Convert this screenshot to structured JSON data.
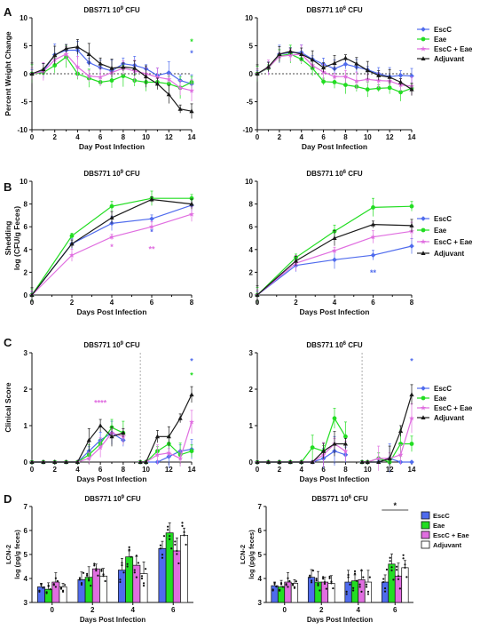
{
  "colors": {
    "escc": "#4f6bed",
    "eae": "#22dd22",
    "escc_eae": "#e06ee0",
    "adjuvant": "#1a1a1a"
  },
  "chart_data": [
    {
      "panel": "A",
      "type": "line",
      "title_main": "DBS771 10",
      "title_exp": "9",
      "title_unit": " CFU",
      "xlabel": "Day Post Infection",
      "ylabel": "Percent Weight Change",
      "xlim": [
        0,
        14
      ],
      "ylim": [
        -10,
        10
      ],
      "xticks": [
        "0",
        "2",
        "4",
        "6",
        "8",
        "10",
        "12",
        "14"
      ],
      "yticks": [
        "10",
        "5",
        "0",
        "-5",
        "-10"
      ],
      "x": [
        0,
        1,
        2,
        3,
        4,
        5,
        6,
        7,
        8,
        9,
        10,
        11,
        12,
        13,
        14
      ],
      "series": [
        {
          "name": "EscC",
          "values": [
            0,
            0.5,
            3.4,
            4.2,
            4.2,
            2,
            1.1,
            0.5,
            1.8,
            1.5,
            0.9,
            -0.3,
            0.2,
            -1.2,
            -1.8
          ]
        },
        {
          "name": "Eae",
          "values": [
            0,
            0.2,
            1.5,
            3,
            0,
            -0.8,
            -1.5,
            -1.2,
            -0.4,
            -1.2,
            -1.5,
            -1.5,
            -1.8,
            -2.5,
            -1.5
          ]
        },
        {
          "name": "EscC + Eae",
          "values": [
            0,
            0.4,
            2.5,
            3.5,
            1.2,
            -0.4,
            -0.6,
            0.2,
            1,
            0.5,
            0,
            -0.6,
            -1,
            -2.5,
            -3
          ]
        },
        {
          "name": "Adjuvant",
          "values": [
            0,
            0.8,
            3.3,
            4.5,
            4.8,
            3.5,
            1.8,
            1,
            1.2,
            1,
            -0.5,
            -1.8,
            -3.7,
            -6.3,
            -6.7
          ]
        }
      ],
      "annotations": [
        "*",
        "*"
      ]
    },
    {
      "panel": "A",
      "type": "line",
      "title_main": "DBS771 10",
      "title_exp": "6",
      "title_unit": " CFU",
      "xlabel": "Day Post Infection",
      "ylabel": "",
      "xlim": [
        0,
        14
      ],
      "ylim": [
        -10,
        10
      ],
      "xticks": [
        "0",
        "2",
        "4",
        "6",
        "8",
        "10",
        "12",
        "14"
      ],
      "yticks": [
        "10",
        "5",
        "0",
        "-5",
        "-10"
      ],
      "x": [
        0,
        1,
        2,
        3,
        4,
        5,
        6,
        7,
        8,
        9,
        10,
        11,
        12,
        13,
        14
      ],
      "series": [
        {
          "name": "EscC",
          "values": [
            0,
            1,
            3.5,
            3.8,
            3.8,
            2.6,
            1.7,
            0.9,
            1.7,
            1.2,
            0.7,
            0,
            -0.5,
            -0.3,
            -0.4
          ]
        },
        {
          "name": "Eae",
          "values": [
            0,
            1,
            3.2,
            3.5,
            2.6,
            1,
            -1.4,
            -1.5,
            -2,
            -2.3,
            -2.8,
            -2.6,
            -2.5,
            -3.3,
            -2.6
          ]
        },
        {
          "name": "EscC + Eae",
          "values": [
            0,
            1.1,
            3.1,
            3.3,
            3.5,
            1.5,
            0.3,
            -0.5,
            -0.5,
            -1.3,
            -1,
            -1.2,
            -1.3,
            -2,
            -2.2
          ]
        },
        {
          "name": "Adjuvant",
          "values": [
            0,
            1.2,
            3.5,
            4,
            3.5,
            2.5,
            1.1,
            1.9,
            2.8,
            1.8,
            0.6,
            -0.3,
            -0.6,
            -1.5,
            -2.8
          ]
        }
      ],
      "annotations": []
    },
    {
      "panel": "B",
      "type": "line",
      "title_main": "DBS771 10",
      "title_exp": "9",
      "title_unit": " CFU",
      "xlabel": "Days Post Infection",
      "ylabel": "Shedding",
      "ylabel2": "log (CFU/g Feces)",
      "xlim": [
        0,
        8
      ],
      "ylim": [
        0,
        10
      ],
      "xticks": [
        "0",
        "2",
        "4",
        "6",
        "8"
      ],
      "yticks": [
        "10",
        "8",
        "6",
        "4",
        "2",
        "0"
      ],
      "x": [
        0,
        2,
        4,
        6,
        8
      ],
      "series": [
        {
          "name": "EscC",
          "values": [
            0,
            4.5,
            6.3,
            6.7,
            7.9
          ]
        },
        {
          "name": "Eae",
          "values": [
            0,
            5.2,
            7.8,
            8.5,
            8.5
          ]
        },
        {
          "name": "EscC + Eae",
          "values": [
            0,
            3.5,
            5.1,
            6,
            7.1
          ]
        },
        {
          "name": "Adjuvant",
          "values": [
            0,
            4.5,
            6.8,
            8.4,
            8
          ]
        }
      ],
      "annotations": [
        "*",
        "*",
        "**"
      ]
    },
    {
      "panel": "B",
      "type": "line",
      "title_main": "DBS771 10",
      "title_exp": "6",
      "title_unit": " CFU",
      "xlabel": "Days Post Infection",
      "ylabel": "",
      "xlim": [
        0,
        8
      ],
      "ylim": [
        0,
        10
      ],
      "xticks": [
        "0",
        "2",
        "4",
        "6",
        "8"
      ],
      "yticks": [
        "10",
        "8",
        "6",
        "4",
        "2",
        "0"
      ],
      "x": [
        0,
        2,
        4,
        6,
        8
      ],
      "series": [
        {
          "name": "EscC",
          "values": [
            0,
            2.6,
            3.1,
            3.5,
            4.3
          ]
        },
        {
          "name": "Eae",
          "values": [
            0,
            3.3,
            5.6,
            7.7,
            7.8
          ]
        },
        {
          "name": "EscC + Eae",
          "values": [
            0,
            2.8,
            3.9,
            5.1,
            5.6
          ]
        },
        {
          "name": "Adjuvant",
          "values": [
            0,
            3,
            5,
            6.2,
            6.1
          ]
        }
      ],
      "annotations": [
        "**"
      ]
    },
    {
      "panel": "C",
      "type": "line",
      "title_main": "DBS771 10",
      "title_exp": "9",
      "title_unit": " CFU",
      "xlabel": "Days Post Infection",
      "ylabel": "Clinical Score",
      "xlim": [
        0,
        14
      ],
      "ylim": [
        0,
        3
      ],
      "xticks": [
        "0",
        "2",
        "4",
        "6",
        "8",
        "10",
        "12",
        "14"
      ],
      "yticks": [
        "3",
        "2",
        "1",
        "0"
      ],
      "x": [
        0,
        1,
        2,
        3,
        4,
        5,
        6,
        7,
        8,
        9.5,
        10,
        11,
        12,
        13,
        14
      ],
      "series": [
        {
          "name": "EscC",
          "values": [
            0,
            0,
            0,
            0,
            0,
            0.3,
            0.6,
            0.8,
            0.6,
            0,
            0,
            0,
            0.15,
            0.3,
            0.35
          ]
        },
        {
          "name": "Eae",
          "values": [
            0,
            0,
            0,
            0,
            0,
            0.2,
            0.5,
            0.95,
            0.8,
            0,
            0,
            0.3,
            0.5,
            0.2,
            0.3
          ]
        },
        {
          "name": "EscC + Eae",
          "values": [
            0,
            0,
            0,
            0,
            0,
            0.1,
            0.4,
            0.8,
            0.7,
            0,
            0,
            0.2,
            0.25,
            0.1,
            1.1
          ]
        },
        {
          "name": "Adjuvant",
          "values": [
            0,
            0,
            0,
            0,
            0,
            0.6,
            1,
            0.7,
            0.8,
            0,
            0,
            0.7,
            0.7,
            1.2,
            1.85
          ]
        }
      ],
      "annotations": [
        "****",
        "*",
        "*"
      ]
    },
    {
      "panel": "C",
      "type": "line",
      "title_main": "DBS771 10",
      "title_exp": "6",
      "title_unit": " CFU",
      "xlabel": "Days Post Infection",
      "ylabel": "",
      "xlim": [
        0,
        14
      ],
      "ylim": [
        0,
        3
      ],
      "xticks": [
        "0",
        "2",
        "4",
        "6",
        "8",
        "10",
        "12",
        "14"
      ],
      "yticks": [
        "3",
        "2",
        "1",
        "0"
      ],
      "x": [
        0,
        1,
        2,
        3,
        4,
        5,
        6,
        7,
        8,
        9.5,
        10,
        11,
        12,
        13,
        14
      ],
      "series": [
        {
          "name": "EscC",
          "values": [
            0,
            0,
            0,
            0,
            0,
            0,
            0.1,
            0.3,
            0.2,
            0,
            0,
            0,
            0.1,
            0,
            0
          ]
        },
        {
          "name": "Eae",
          "values": [
            0,
            0,
            0,
            0,
            0,
            0.4,
            0.3,
            1.2,
            0.7,
            0,
            0,
            0.1,
            0,
            0.5,
            0.5
          ]
        },
        {
          "name": "EscC + Eae",
          "values": [
            0,
            0,
            0,
            0,
            0,
            0,
            0.2,
            0.5,
            0.3,
            0,
            0,
            0.1,
            0.1,
            0.2,
            1.2
          ]
        },
        {
          "name": "Adjuvant",
          "values": [
            0,
            0,
            0,
            0,
            0,
            0,
            0.3,
            0.5,
            0.5,
            0,
            0,
            0,
            0.1,
            0.85,
            1.85
          ]
        }
      ],
      "annotations": [
        "*"
      ]
    },
    {
      "panel": "D",
      "type": "bar",
      "title_main": "DBS771 10",
      "title_exp": "9",
      "title_unit": " CFU",
      "xlabel": "Days Post Infection",
      "ylabel": "LCN-2",
      "ylabel2": "log (pg/g feces)",
      "categories": [
        "0",
        "2",
        "4",
        "6"
      ],
      "ylim": [
        3,
        7
      ],
      "yticks": [
        "7",
        "6",
        "5",
        "4",
        "3"
      ],
      "series": [
        {
          "name": "EscC",
          "values": [
            3.65,
            3.95,
            4.35,
            5.25
          ]
        },
        {
          "name": "Eae",
          "values": [
            3.55,
            4.05,
            4.9,
            5.9
          ]
        },
        {
          "name": "EscC + Eae",
          "values": [
            3.85,
            4.4,
            4.55,
            5.15
          ]
        },
        {
          "name": "Adjuvant",
          "values": [
            3.65,
            4.1,
            4.2,
            5.8
          ]
        }
      ],
      "annotations": []
    },
    {
      "panel": "D",
      "type": "bar",
      "title_main": "DBS771 10",
      "title_exp": "6",
      "title_unit": " CFU",
      "xlabel": "Days Post Infection",
      "ylabel": "LCN-2",
      "ylabel2": "log (pg/g feces)",
      "categories": [
        "0",
        "2",
        "4",
        "6"
      ],
      "ylim": [
        3,
        7
      ],
      "yticks": [
        "7",
        "6",
        "5",
        "4",
        "3"
      ],
      "series": [
        {
          "name": "EscC",
          "values": [
            3.7,
            4.05,
            3.85,
            3.85
          ]
        },
        {
          "name": "Eae",
          "values": [
            3.65,
            3.85,
            3.9,
            4.6
          ]
        },
        {
          "name": "EscC + Eae",
          "values": [
            3.85,
            3.85,
            3.95,
            4.1
          ]
        },
        {
          "name": "Adjuvant",
          "values": [
            3.8,
            3.8,
            3.85,
            4.45
          ]
        }
      ],
      "annotations": [
        "*"
      ]
    }
  ],
  "panel_letters": [
    "A",
    "B",
    "C",
    "D"
  ],
  "legend_labels": [
    "EscC",
    "Eae",
    "EscC + Eae",
    "Adjuvant"
  ]
}
